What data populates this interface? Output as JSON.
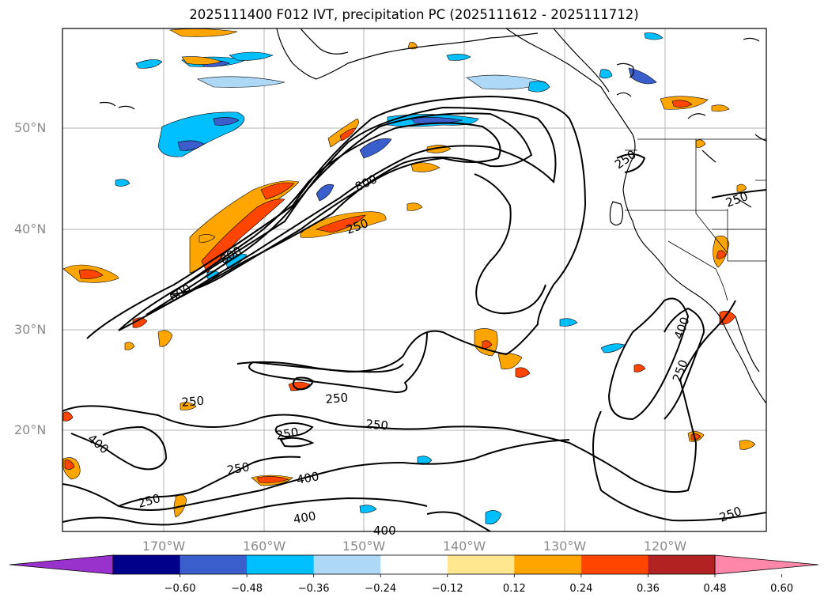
{
  "title": "2025111400 F012 IVT, precipitation PC (2025111612 - 2025111712)",
  "lat_labels": [
    "50°N",
    "40°N",
    "30°N",
    "20°N"
  ],
  "lon_labels": [
    "170°W",
    "160°W",
    "150°W",
    "140°W",
    "130°W",
    "120°W"
  ],
  "contour_levels": [
    "250",
    "400",
    "600",
    "800"
  ],
  "contour_labels": [
    "250",
    "250",
    "250",
    "250",
    "250",
    "250",
    "250",
    "250",
    "250",
    "250",
    "400",
    "400",
    "400",
    "400",
    "400",
    "600",
    "800",
    "800",
    "250"
  ],
  "colorbar": {
    "ticks": [
      "−0.60",
      "−0.48",
      "−0.36",
      "−0.24",
      "−0.12",
      "0.12",
      "0.24",
      "0.36",
      "0.48",
      "0.60"
    ],
    "colors": [
      "#9932cc",
      "#00008b",
      "#3a5fcd",
      "#00bfff",
      "#add8f6",
      "#ffffff",
      "#ffe78f",
      "#ffa500",
      "#ff4500",
      "#b22222",
      "#ff88aa"
    ],
    "under_color": "#9932cc",
    "over_color": "#ff88aa"
  }
}
